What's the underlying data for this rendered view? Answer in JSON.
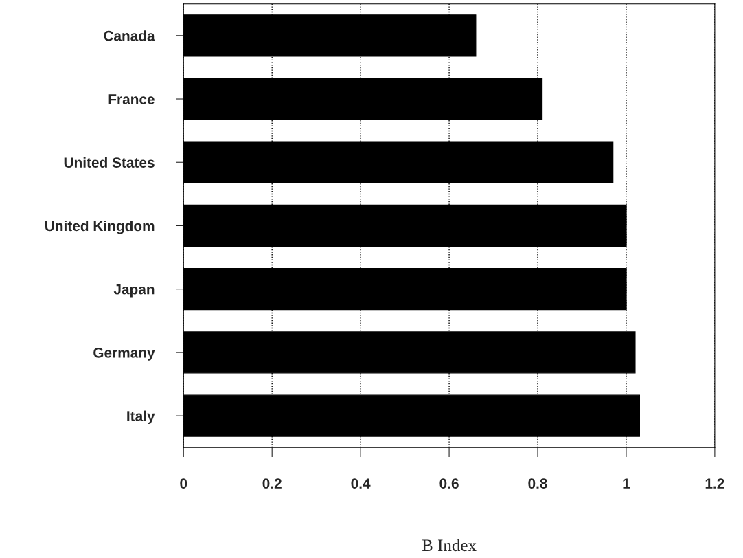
{
  "chart_data": {
    "type": "bar",
    "orientation": "horizontal",
    "xlabel": "B Index",
    "categories": [
      "Canada",
      "France",
      "United States",
      "United Kingdom",
      "Japan",
      "Germany",
      "Italy"
    ],
    "values": [
      0.66,
      0.81,
      0.97,
      1.0,
      1.0,
      1.02,
      1.03
    ],
    "color": "#000000",
    "xlim": [
      0,
      1.2
    ],
    "xticks": [
      0,
      0.2,
      0.4,
      0.6,
      0.8,
      1,
      1.2
    ],
    "grid": "x",
    "legend": false
  }
}
